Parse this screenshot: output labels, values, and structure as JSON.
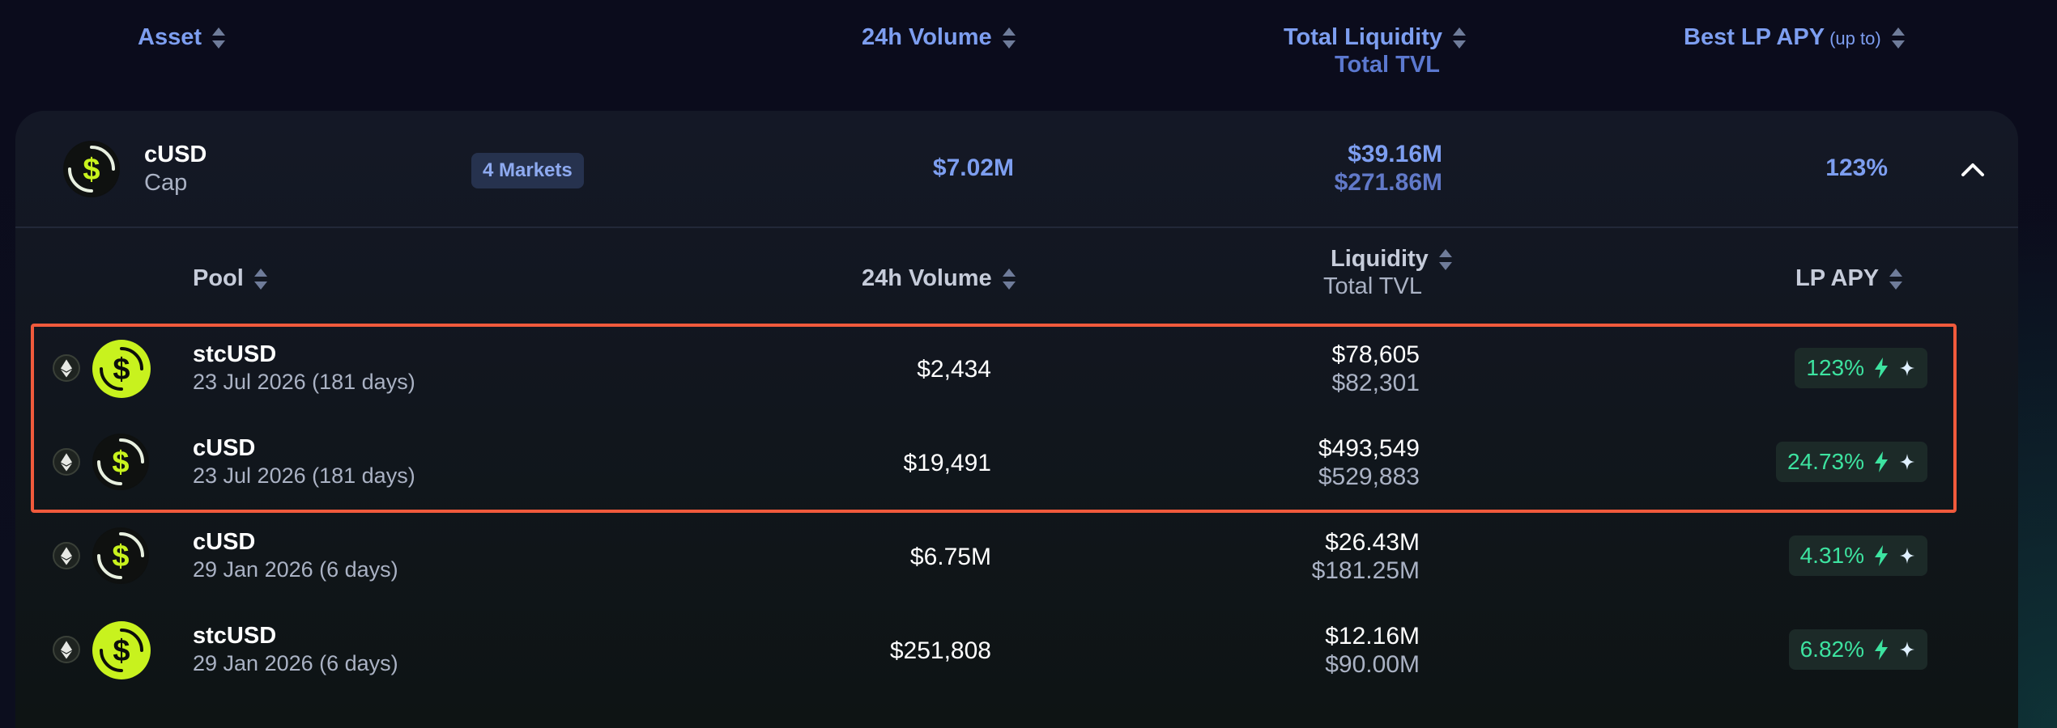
{
  "columns": {
    "asset": "Asset",
    "volume_24h": "24h Volume",
    "total_liquidity": "Total Liquidity",
    "total_tvl": "Total TVL",
    "best_lp_apy": "Best LP APY",
    "best_lp_apy_suffix": "(up to)"
  },
  "asset": {
    "symbol": "cUSD",
    "name": "Cap",
    "markets_badge": "4 Markets",
    "volume_24h": "$7.02M",
    "total_liquidity": "$39.16M",
    "total_tvl": "$271.86M",
    "best_apy": "123%"
  },
  "pool_columns": {
    "pool": "Pool",
    "volume_24h": "24h Volume",
    "liquidity": "Liquidity",
    "total_tvl": "Total TVL",
    "lp_apy": "LP APY"
  },
  "pools": [
    {
      "name": "stcUSD",
      "maturity": "23 Jul 2026 (181 days)",
      "volume": "$2,434",
      "liquidity": "$78,605",
      "tvl": "$82,301",
      "apy": "123%",
      "icon": "solid"
    },
    {
      "name": "cUSD",
      "maturity": "23 Jul 2026 (181 days)",
      "volume": "$19,491",
      "liquidity": "$493,549",
      "tvl": "$529,883",
      "apy": "24.73%",
      "icon": "outline"
    },
    {
      "name": "cUSD",
      "maturity": "29 Jan 2026 (6 days)",
      "volume": "$6.75M",
      "liquidity": "$26.43M",
      "tvl": "$181.25M",
      "apy": "4.31%",
      "icon": "outline"
    },
    {
      "name": "stcUSD",
      "maturity": "29 Jan 2026 (6 days)",
      "volume": "$251,808",
      "liquidity": "$12.16M",
      "tvl": "$90.00M",
      "apy": "6.82%",
      "icon": "solid"
    }
  ],
  "colors": {
    "accent_blue": "#7d9ef0",
    "apy_green": "#3de3a0",
    "coin_lime": "#c8f21e",
    "highlight_border": "#f05a3c"
  }
}
